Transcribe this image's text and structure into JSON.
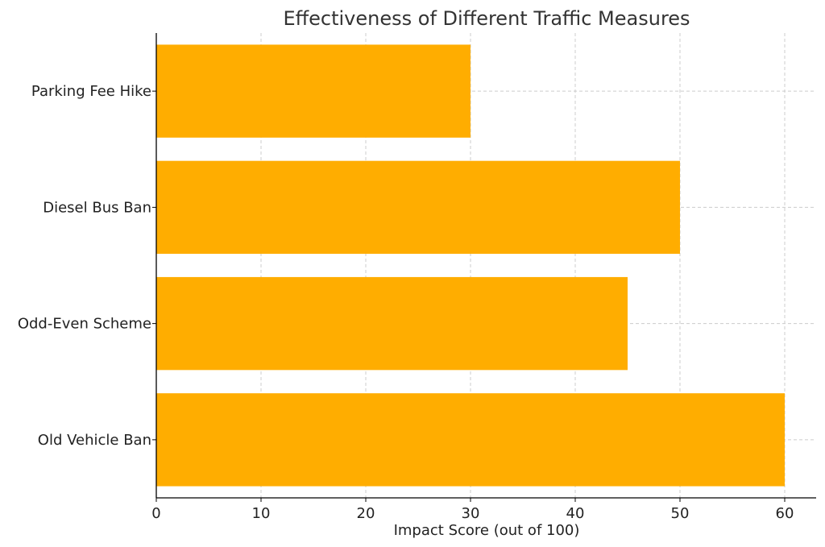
{
  "chart_data": {
    "type": "bar",
    "orientation": "horizontal",
    "title": "Effectiveness of Different Traffic Measures",
    "xlabel": "Impact Score (out of 100)",
    "ylabel": "",
    "categories": [
      "Old Vehicle Ban",
      "Odd-Even Scheme",
      "Diesel Bus Ban",
      "Parking Fee Hike"
    ],
    "values": [
      60,
      45,
      50,
      30
    ],
    "xlim": [
      0,
      63
    ],
    "xticks": [
      0,
      10,
      20,
      30,
      40,
      50,
      60
    ],
    "grid": true,
    "colors": {
      "bar": "#ffad00",
      "grid": "#cccccc",
      "axis": "#000000",
      "text": "#222222",
      "title": "#333333"
    }
  }
}
